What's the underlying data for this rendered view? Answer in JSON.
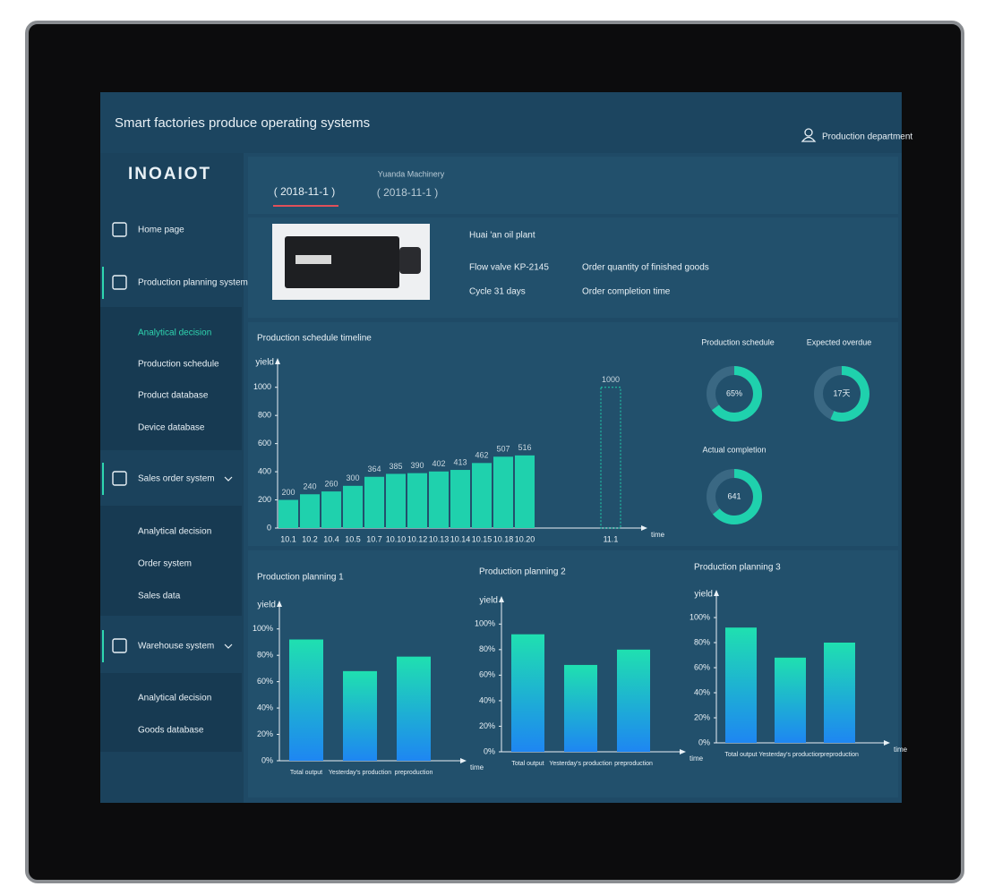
{
  "header": {
    "title": "Smart factories produce operating systems",
    "user": "Production department"
  },
  "sidebar": {
    "logo": "INOAIOT",
    "menus": [
      {
        "label": "Home page",
        "items": []
      },
      {
        "label": "Production planning system",
        "items": [
          "Analytical decision",
          "Production schedule",
          "Product database",
          "Device database"
        ]
      },
      {
        "label": "Sales order system",
        "items": [
          "Analytical decision",
          "Order system",
          "Sales data"
        ]
      },
      {
        "label": "Warehouse system",
        "items": [
          "Analytical decision",
          "Goods database"
        ]
      }
    ]
  },
  "tabs": [
    {
      "label": "( 2018-11-1 )"
    },
    {
      "caption": "Yuanda Machinery",
      "label": "( 2018-11-1 )"
    }
  ],
  "product": {
    "plant": "Huai 'an oil plant",
    "model": "Flow valve KP-2145",
    "quantity": "Order quantity of finished goods",
    "cycle": "Cycle 31 days",
    "completion": "Order completion time"
  },
  "chart_data": [
    {
      "type": "bar",
      "title": "Production schedule timeline",
      "y_label": "yield",
      "x_label": "time",
      "categories": [
        "10.1",
        "10.2",
        "10.4",
        "10.5",
        "10.7",
        "10.10",
        "10.12",
        "10.13",
        "10.14",
        "10.15",
        "10.18",
        "10.20",
        null,
        null,
        null,
        "11.1"
      ],
      "values": [
        200,
        240,
        260,
        300,
        364,
        385,
        390,
        402,
        413,
        462,
        507,
        516,
        null,
        null,
        null,
        null
      ],
      "target_values": [
        null,
        null,
        null,
        null,
        null,
        null,
        null,
        null,
        null,
        null,
        null,
        null,
        null,
        null,
        null,
        1000
      ],
      "target_style": "dashed",
      "data_labels": true,
      "color": "#1fd1ad",
      "ylim": [
        0,
        1100
      ],
      "yticks": [
        0,
        200,
        400,
        600,
        800,
        1000
      ]
    },
    {
      "type": "donut",
      "title": "Production schedule",
      "value": 65,
      "value_label": "65%",
      "max": 100,
      "color": "#1fd1ad"
    },
    {
      "type": "donut",
      "title": "Expected overdue",
      "value": 17,
      "value_label": "17天",
      "max": 30,
      "color": "#1fd1ad"
    },
    {
      "type": "donut",
      "title": "Actual completion",
      "value": 641,
      "max": 1000,
      "color": "#1fd1ad"
    },
    {
      "type": "bar",
      "title": "Production planning 1",
      "y_label": "yield",
      "x_label": "time",
      "categories": [
        "Total output",
        "Yesterday's production",
        "preproduction"
      ],
      "values": [
        92,
        68,
        79
      ],
      "colors": [
        "#1fe0b0",
        "#1e86f2"
      ],
      "ylim": [
        0,
        110
      ],
      "yticks": [
        {
          "value": 0,
          "label": "0%"
        },
        {
          "value": 20,
          "label": "20%"
        },
        {
          "value": 40,
          "label": "40%"
        },
        {
          "value": 60,
          "label": "60%"
        },
        {
          "value": 80,
          "label": "80%"
        },
        {
          "value": 100,
          "label": "100%"
        }
      ]
    },
    {
      "type": "bar",
      "title": "Production planning 2",
      "y_label": "yield",
      "x_label": "time",
      "categories": [
        "Total output",
        "Yesterday's production",
        "preproduction"
      ],
      "values": [
        92,
        68,
        80
      ],
      "colors": [
        "#1fe0b0",
        "#1e86f2"
      ],
      "ylim": [
        0,
        110
      ],
      "yticks": [
        {
          "value": 0,
          "label": "0%"
        },
        {
          "value": 20,
          "label": "20%"
        },
        {
          "value": 40,
          "label": "40%"
        },
        {
          "value": 60,
          "label": "60%"
        },
        {
          "value": 80,
          "label": "80%"
        },
        {
          "value": 100,
          "label": "100%"
        }
      ]
    },
    {
      "type": "bar",
      "title": "Production planning 3",
      "y_label": "yield",
      "x_label": "time",
      "categories": [
        "Total output",
        "Yesterday's production",
        "preproduction"
      ],
      "values": [
        92,
        68,
        80
      ],
      "colors": [
        "#1fe0b0",
        "#1e86f2"
      ],
      "ylim": [
        0,
        110
      ],
      "yticks": [
        {
          "value": 0,
          "label": "0%"
        },
        {
          "value": 20,
          "label": "20%"
        },
        {
          "value": 40,
          "label": "40%"
        },
        {
          "value": 60,
          "label": "60%"
        },
        {
          "value": 80,
          "label": "80%"
        },
        {
          "value": 100,
          "label": "100%"
        }
      ]
    }
  ]
}
